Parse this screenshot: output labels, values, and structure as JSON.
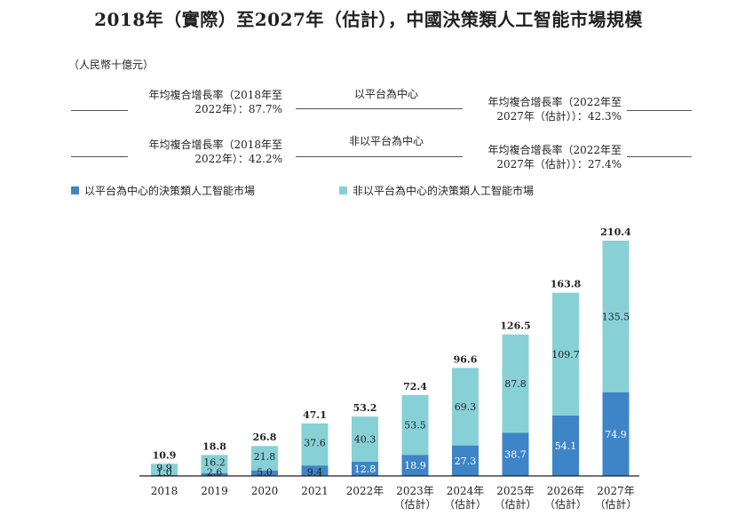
{
  "colors": {
    "platform": "#3d85c6",
    "non_platform": "#87d1d6",
    "text": "#231f20",
    "axis": "#231f20"
  },
  "annotations": {
    "top_left": "年均複合增長率（2018年至2022年）：87.7%",
    "top_left_line1": "年均複合增長率（2018年至",
    "top_left_line2": "2022年）：87.7%",
    "top_mid": "以平台為中心",
    "top_right_line1": "年均複合增長率（2022年至",
    "top_right_line2": "2027年（估計））：42.3%",
    "bot_left_line1": "年均複合增長率（2018年至",
    "bot_left_line2": "2022年）：42.2%",
    "bot_mid": "非以平台為中心",
    "bot_right_line1": "年均複合增長率（2022年至",
    "bot_right_line2": "2027年（估計））：27.4%"
  },
  "chart_data": {
    "type": "bar",
    "stacked": true,
    "title": "2018年（實際）至2027年（估計），中國決策類人工智能市場規模",
    "unit": "（人民幣十億元）",
    "categories": [
      [
        "2018"
      ],
      [
        "2019"
      ],
      [
        "2020"
      ],
      [
        "2021"
      ],
      [
        "2022年"
      ],
      [
        "2023年",
        "（估計）"
      ],
      [
        "2024年",
        "（估計）"
      ],
      [
        "2025年",
        "（估計）"
      ],
      [
        "2026年",
        "（估計）"
      ],
      [
        "2027年",
        "（估計）"
      ]
    ],
    "series": [
      {
        "name": "以平台為中心的決策類人工智能市場",
        "values": [
          1.0,
          2.6,
          5.0,
          9.4,
          12.8,
          18.9,
          27.3,
          38.7,
          54.1,
          74.9
        ]
      },
      {
        "name": "非以平台為中心的決策類人工智能市場",
        "values": [
          9.9,
          16.2,
          21.8,
          37.6,
          40.3,
          53.5,
          69.3,
          87.8,
          109.7,
          135.5
        ]
      }
    ],
    "totals": [
      "10.9",
      "18.8",
      "26.8",
      "47.1",
      "53.2",
      "72.4",
      "96.6",
      "126.5",
      "163.8",
      "210.4"
    ],
    "platform_labels": [
      "1.0",
      "2.6",
      "5.0",
      "9.4",
      "12.8",
      "18.9",
      "27.3",
      "38.7",
      "54.1",
      "74.9"
    ],
    "non_platform_labels": [
      "9.9",
      "16.2",
      "21.8",
      "37.6",
      "40.3",
      "53.5",
      "69.3",
      "87.8",
      "109.7",
      "135.5"
    ],
    "ylim": [
      0,
      210.4
    ]
  }
}
